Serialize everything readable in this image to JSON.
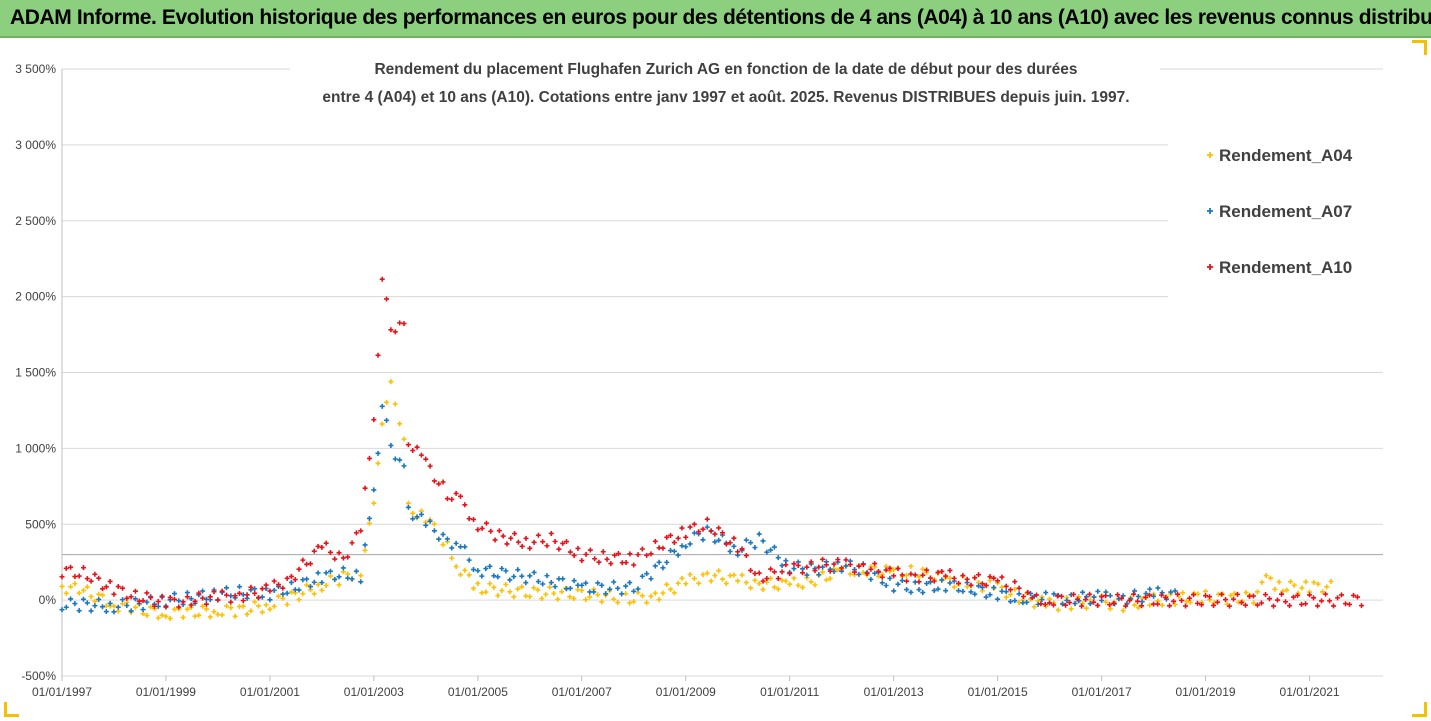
{
  "banner": {
    "title": "ADAM Informe. Evolution historique des performances en euros pour des détentions de 4 ans (A04) à 10 ans (A10) avec les revenus connus distribués"
  },
  "chart_data": {
    "type": "scatter",
    "title_lines": [
      "Rendement du placement Flughafen Zurich AG en fonction de la date de début pour des durées",
      "entre 4 (A04) et 10 ans (A10). Cotations entre janv 1997 et août. 2025. Revenus DISTRIBUES depuis juin. 1997."
    ],
    "ylim": [
      -500,
      3500
    ],
    "y_ticks": [
      -500,
      0,
      500,
      1000,
      1500,
      2000,
      2500,
      3000,
      3500
    ],
    "y_tick_labels": [
      "-500%",
      "0%",
      "500%",
      "1 000%",
      "1 500%",
      "2 000%",
      "2 500%",
      "3 000%",
      "3 500%"
    ],
    "xlim": [
      "1997-01-01",
      "2022-06-01"
    ],
    "x_tick_labels": [
      "01/01/1997",
      "01/01/1999",
      "01/01/2001",
      "01/01/2003",
      "01/01/2005",
      "01/01/2007",
      "01/01/2009",
      "01/01/2011",
      "01/01/2013",
      "01/01/2015",
      "01/01/2017",
      "01/01/2019",
      "01/01/2021"
    ],
    "x_tick_dates": [
      "1997-01-01",
      "1999-01-01",
      "2001-01-01",
      "2003-01-01",
      "2005-01-01",
      "2007-01-01",
      "2009-01-01",
      "2011-01-01",
      "2013-01-01",
      "2015-01-01",
      "2017-01-01",
      "2019-01-01",
      "2021-01-01"
    ],
    "reference_line_y": 300,
    "grid": "horizontal",
    "legend_position": "right",
    "series": [
      {
        "name": "Rendement_A04",
        "color": "#ffc000",
        "points": [
          [
            "1997-01-01",
            90
          ],
          [
            "1997-06-01",
            60
          ],
          [
            "1998-01-01",
            -30
          ],
          [
            "1998-06-01",
            -60
          ],
          [
            "1999-01-01",
            -90
          ],
          [
            "1999-06-01",
            -80
          ],
          [
            "2000-01-01",
            -70
          ],
          [
            "2000-06-01",
            -70
          ],
          [
            "2001-01-01",
            -30
          ],
          [
            "2001-06-01",
            20
          ],
          [
            "2002-01-01",
            100
          ],
          [
            "2002-06-01",
            150
          ],
          [
            "2002-10-01",
            200
          ],
          [
            "2003-01-01",
            600
          ],
          [
            "2003-03-01",
            1200
          ],
          [
            "2003-05-01",
            1400
          ],
          [
            "2003-08-01",
            1100
          ],
          [
            "2003-09-01",
            600
          ],
          [
            "2004-01-01",
            550
          ],
          [
            "2004-06-01",
            350
          ],
          [
            "2004-09-01",
            200
          ],
          [
            "2005-01-01",
            80
          ],
          [
            "2006-01-01",
            50
          ],
          [
            "2007-01-01",
            40
          ],
          [
            "2008-01-01",
            10
          ],
          [
            "2008-06-01",
            30
          ],
          [
            "2009-01-01",
            120
          ],
          [
            "2009-06-01",
            170
          ],
          [
            "2010-01-01",
            130
          ],
          [
            "2010-06-01",
            110
          ],
          [
            "2011-01-01",
            100
          ],
          [
            "2011-06-01",
            130
          ],
          [
            "2012-01-01",
            190
          ],
          [
            "2012-06-01",
            200
          ],
          [
            "2013-01-01",
            180
          ],
          [
            "2013-06-01",
            190
          ],
          [
            "2014-01-01",
            120
          ],
          [
            "2014-06-01",
            120
          ],
          [
            "2015-01-01",
            80
          ],
          [
            "2015-06-01",
            20
          ],
          [
            "2016-01-01",
            -30
          ],
          [
            "2016-06-01",
            -20
          ],
          [
            "2017-01-01",
            -10
          ],
          [
            "2017-06-01",
            -30
          ],
          [
            "2018-01-01",
            0
          ],
          [
            "2018-06-01",
            10
          ],
          [
            "2019-01-01",
            20
          ],
          [
            "2019-06-01",
            10
          ],
          [
            "2020-01-01",
            20
          ],
          [
            "2020-02-01",
            150
          ],
          [
            "2020-06-01",
            90
          ],
          [
            "2021-01-01",
            80
          ],
          [
            "2021-06-01",
            100
          ]
        ]
      },
      {
        "name": "Rendement_A07",
        "color": "#1a77c2",
        "points": [
          [
            "1997-01-01",
            -30
          ],
          [
            "1997-06-01",
            -30
          ],
          [
            "1998-01-01",
            -40
          ],
          [
            "1998-06-01",
            -30
          ],
          [
            "1999-01-01",
            0
          ],
          [
            "1999-06-01",
            10
          ],
          [
            "2000-01-01",
            40
          ],
          [
            "2000-06-01",
            50
          ],
          [
            "2001-01-01",
            40
          ],
          [
            "2001-06-01",
            80
          ],
          [
            "2002-01-01",
            150
          ],
          [
            "2002-06-01",
            180
          ],
          [
            "2002-10-01",
            150
          ],
          [
            "2003-01-01",
            700
          ],
          [
            "2003-03-01",
            1300
          ],
          [
            "2003-05-01",
            1000
          ],
          [
            "2003-08-01",
            900
          ],
          [
            "2003-09-01",
            600
          ],
          [
            "2004-01-01",
            500
          ],
          [
            "2004-06-01",
            400
          ],
          [
            "2004-09-01",
            350
          ],
          [
            "2005-01-01",
            200
          ],
          [
            "2006-01-01",
            150
          ],
          [
            "2006-06-01",
            130
          ],
          [
            "2007-01-01",
            80
          ],
          [
            "2008-01-01",
            80
          ],
          [
            "2008-06-01",
            200
          ],
          [
            "2009-01-01",
            380
          ],
          [
            "2009-06-01",
            450
          ],
          [
            "2010-01-01",
            330
          ],
          [
            "2010-06-01",
            400
          ],
          [
            "2011-01-01",
            220
          ],
          [
            "2011-06-01",
            200
          ],
          [
            "2012-01-01",
            230
          ],
          [
            "2012-06-01",
            200
          ],
          [
            "2013-01-01",
            100
          ],
          [
            "2013-06-01",
            80
          ],
          [
            "2014-01-01",
            100
          ],
          [
            "2014-06-01",
            80
          ],
          [
            "2015-01-01",
            40
          ],
          [
            "2015-06-01",
            10
          ],
          [
            "2016-01-01",
            10
          ],
          [
            "2016-06-01",
            10
          ],
          [
            "2017-01-01",
            20
          ],
          [
            "2017-06-01",
            10
          ],
          [
            "2018-01-01",
            40
          ],
          [
            "2018-06-01",
            50
          ]
        ]
      },
      {
        "name": "Rendement_A10",
        "color": "#e8121b",
        "points": [
          [
            "1997-01-01",
            190
          ],
          [
            "1997-06-01",
            180
          ],
          [
            "1998-01-01",
            70
          ],
          [
            "1998-06-01",
            30
          ],
          [
            "1999-01-01",
            -20
          ],
          [
            "1999-06-01",
            0
          ],
          [
            "2000-01-01",
            20
          ],
          [
            "2000-06-01",
            30
          ],
          [
            "2001-01-01",
            70
          ],
          [
            "2001-06-01",
            150
          ],
          [
            "2002-01-01",
            350
          ],
          [
            "2002-06-01",
            280
          ],
          [
            "2002-10-01",
            450
          ],
          [
            "2003-01-01",
            1200
          ],
          [
            "2003-03-01",
            2100
          ],
          [
            "2003-05-01",
            1800
          ],
          [
            "2003-08-01",
            1800
          ],
          [
            "2003-09-01",
            1050
          ],
          [
            "2004-01-01",
            900
          ],
          [
            "2004-06-01",
            700
          ],
          [
            "2004-09-01",
            650
          ],
          [
            "2005-01-01",
            500
          ],
          [
            "2005-06-01",
            420
          ],
          [
            "2006-01-01",
            380
          ],
          [
            "2006-06-01",
            400
          ],
          [
            "2007-01-01",
            300
          ],
          [
            "2007-06-01",
            280
          ],
          [
            "2008-01-01",
            270
          ],
          [
            "2008-06-01",
            350
          ],
          [
            "2009-01-01",
            450
          ],
          [
            "2009-06-01",
            500
          ],
          [
            "2010-01-01",
            350
          ],
          [
            "2010-06-01",
            150
          ],
          [
            "2011-01-01",
            200
          ],
          [
            "2011-06-01",
            230
          ],
          [
            "2012-01-01",
            230
          ],
          [
            "2012-06-01",
            220
          ],
          [
            "2013-01-01",
            170
          ],
          [
            "2013-06-01",
            160
          ],
          [
            "2014-01-01",
            160
          ],
          [
            "2014-06-01",
            140
          ],
          [
            "2015-01-01",
            120
          ],
          [
            "2015-06-01",
            90
          ],
          [
            "2015-09-01",
            0
          ],
          [
            "2016-01-01",
            0
          ],
          [
            "2017-01-01",
            0
          ],
          [
            "2018-01-01",
            0
          ],
          [
            "2019-01-01",
            0
          ],
          [
            "2020-01-01",
            0
          ],
          [
            "2021-01-01",
            0
          ],
          [
            "2022-01-01",
            0
          ]
        ]
      }
    ]
  }
}
